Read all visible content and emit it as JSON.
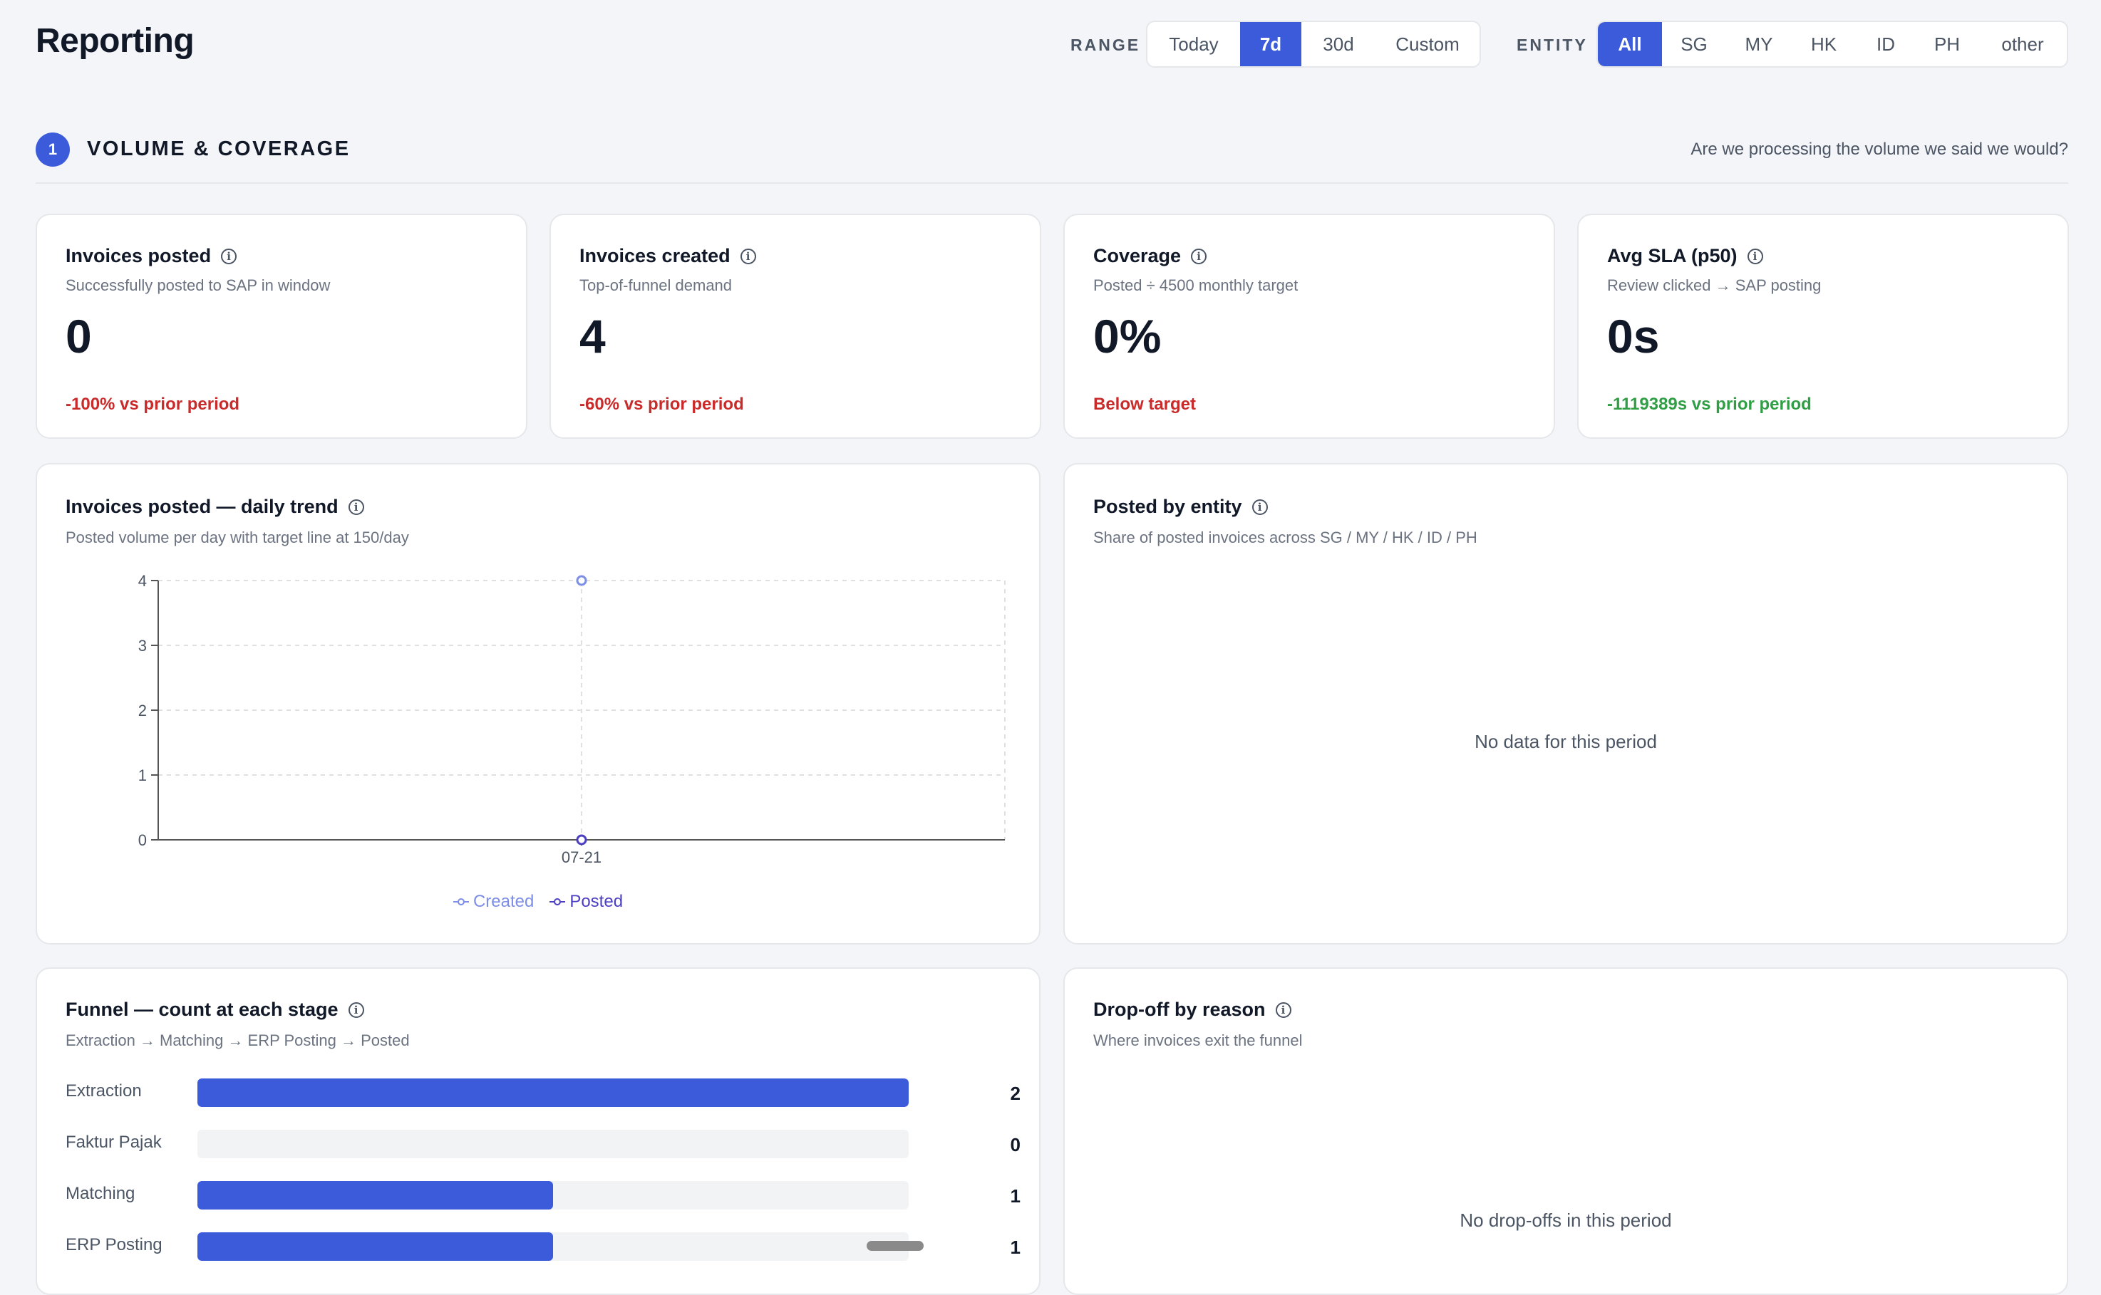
{
  "header": {
    "title": "Reporting",
    "range_label": "RANGE",
    "range_options": [
      "Today",
      "7d",
      "30d",
      "Custom"
    ],
    "range_selected": "7d",
    "entity_label": "ENTITY",
    "entity_options": [
      "All",
      "SG",
      "MY",
      "HK",
      "ID",
      "PH",
      "other"
    ],
    "entity_selected": "All"
  },
  "section": {
    "number": "1",
    "title": "VOLUME & COVERAGE",
    "question": "Are we processing the volume we said we would?"
  },
  "kpis": [
    {
      "title": "Invoices posted",
      "subtitle": "Successfully posted to SAP in window",
      "value": "0",
      "delta": "-100% vs prior period",
      "tone": "negative"
    },
    {
      "title": "Invoices created",
      "subtitle": "Top-of-funnel demand",
      "value": "4",
      "delta": "-60% vs prior period",
      "tone": "negative"
    },
    {
      "title": "Coverage",
      "subtitle": "Posted ÷ 4500 monthly target",
      "value": "0%",
      "delta": "Below target",
      "tone": "negative"
    },
    {
      "title": "Avg SLA (p50)",
      "subtitle": "Review clicked → SAP posting",
      "value": "0s",
      "delta": "-1119389s vs prior period",
      "tone": "positive"
    }
  ],
  "trend": {
    "title": "Invoices posted — daily trend",
    "subtitle": "Posted volume per day with target line at 150/day"
  },
  "chart_data": {
    "type": "line",
    "x": [
      "07-21"
    ],
    "series": [
      {
        "name": "Created",
        "values": [
          4
        ],
        "color": "#7c8ee6"
      },
      {
        "name": "Posted",
        "values": [
          0
        ],
        "color": "#4c3fc4"
      }
    ],
    "yticks": [
      0,
      1,
      2,
      3,
      4
    ],
    "ylim": [
      0,
      4
    ],
    "grid": true,
    "legend": "bottom-center"
  },
  "by_entity": {
    "title": "Posted by entity",
    "subtitle": "Share of posted invoices across SG / MY / HK / ID / PH",
    "empty": "No data for this period"
  },
  "funnel": {
    "title": "Funnel — count at each stage",
    "subtitle": "Extraction → Matching → ERP Posting → Posted",
    "max": 2,
    "rows": [
      {
        "label": "Extraction",
        "count": 2
      },
      {
        "label": "Faktur Pajak",
        "count": 0
      },
      {
        "label": "Matching",
        "count": 1
      },
      {
        "label": "ERP Posting",
        "count": 1
      }
    ]
  },
  "dropoff": {
    "title": "Drop-off by reason",
    "subtitle": "Where invoices exit the funnel",
    "empty": "No drop-offs in this period"
  },
  "colors": {
    "accent": "#3b5bdb",
    "negative": "#c92a2a",
    "positive": "#2f9e44",
    "info_icon": "info-circle-icon"
  }
}
